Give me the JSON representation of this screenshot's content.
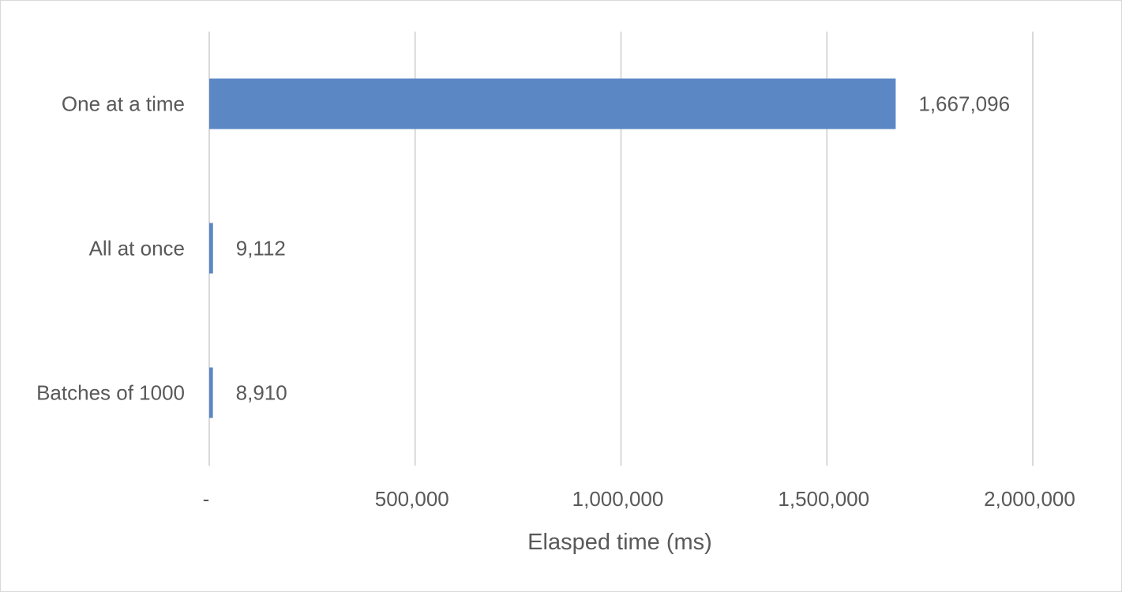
{
  "chart_data": {
    "type": "bar",
    "orientation": "horizontal",
    "categories": [
      "One at a time",
      "All at once",
      "Batches of 1000"
    ],
    "values": [
      1667096,
      9112,
      8910
    ],
    "data_labels": [
      "1,667,096",
      "9,112",
      "8,910"
    ],
    "title": "",
    "xlabel": "Elasped time (ms)",
    "ylabel": "",
    "xlim": [
      0,
      2000000
    ],
    "x_ticks": [
      0,
      500000,
      1000000,
      1500000,
      2000000
    ],
    "x_tick_labels": [
      "-",
      "500,000",
      "1,000,000",
      "1,500,000",
      "2,000,000"
    ],
    "grid": "vertical",
    "legend": "none",
    "bar_color": "#5b87c5",
    "grid_color": "#d9d9d9"
  }
}
